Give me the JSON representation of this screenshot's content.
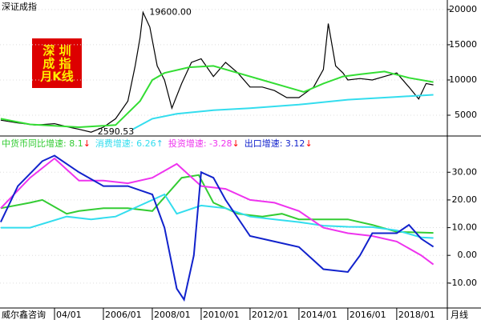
{
  "chart_data": [
    {
      "type": "line",
      "title": "深证成指",
      "xlim": [
        2001.77,
        2020.07
      ],
      "ylim": [
        2050,
        21350
      ],
      "yticks": [
        5000,
        10000,
        15000,
        20000
      ],
      "badge": [
        "深 圳",
        "成 指",
        "月K线"
      ],
      "annotations": [
        {
          "x": 2007.62,
          "value": 19600,
          "label": "19600.00"
        },
        {
          "x": 2005.5,
          "value": 2590.53,
          "label": "2590.53"
        }
      ],
      "series": [
        {
          "color": "#000000",
          "x": [
            2001.8,
            2002.5,
            2003.2,
            2004.0,
            2004.6,
            2005.0,
            2005.5,
            2006.0,
            2006.5,
            2007.0,
            2007.3,
            2007.5,
            2007.62,
            2007.9,
            2008.2,
            2008.5,
            2008.8,
            2009.2,
            2009.6,
            2010.0,
            2010.5,
            2011.0,
            2011.5,
            2012.0,
            2012.5,
            2013.0,
            2013.5,
            2014.0,
            2014.6,
            2015.0,
            2015.2,
            2015.5,
            2015.8,
            2016.0,
            2016.5,
            2017.0,
            2017.5,
            2018.0,
            2018.5,
            2018.9,
            2019.2,
            2019.5
          ],
          "values": [
            4300,
            3900,
            3600,
            3800,
            3300,
            3000,
            2590.53,
            3300,
            4500,
            7000,
            12000,
            16000,
            19600,
            17500,
            12000,
            10000,
            6000,
            9500,
            12500,
            13000,
            10500,
            12500,
            11000,
            9000,
            9000,
            8500,
            7500,
            7500,
            9000,
            11500,
            18000,
            12000,
            11000,
            10000,
            10200,
            10000,
            10500,
            11000,
            9000,
            7300,
            9500,
            9300
          ]
        },
        {
          "color": "#33dd33",
          "x": [
            2001.8,
            2003.0,
            2005.0,
            2006.5,
            2007.5,
            2008.0,
            2008.5,
            2009.5,
            2010.5,
            2011.5,
            2012.5,
            2013.5,
            2014.2,
            2015.0,
            2015.8,
            2016.5,
            2017.5,
            2018.5,
            2019.5
          ],
          "values": [
            4500,
            3700,
            3300,
            3600,
            7000,
            10000,
            11000,
            11800,
            12000,
            11000,
            10000,
            9000,
            8300,
            9500,
            10500,
            10800,
            11200,
            10300,
            9700
          ]
        },
        {
          "color": "#33ddee",
          "x": [
            2007.2,
            2008.0,
            2009.0,
            2010.5,
            2012.0,
            2014.0,
            2016.0,
            2018.0,
            2019.5
          ],
          "values": [
            3000,
            4500,
            5200,
            5700,
            6000,
            6500,
            7200,
            7600,
            7900
          ]
        }
      ]
    },
    {
      "type": "line",
      "xlim": [
        2001.77,
        2020.07
      ],
      "ylim": [
        -19,
        42.5
      ],
      "yticks": [
        {
          "value": -10,
          "label": "-10.00"
        },
        {
          "value": 0,
          "label": "0.00"
        },
        {
          "value": 10,
          "label": "10.00"
        },
        {
          "value": 20,
          "label": "20.00"
        },
        {
          "value": 30,
          "label": "30.00"
        }
      ],
      "xticks": [
        {
          "value": 2004,
          "label": "04/01"
        },
        {
          "value": 2006,
          "label": "2006/01"
        },
        {
          "value": 2008,
          "label": "2008/01"
        },
        {
          "value": 2010,
          "label": "2010/01"
        },
        {
          "value": 2012,
          "label": "2012/01"
        },
        {
          "value": 2014,
          "label": "2014/01"
        },
        {
          "value": 2016,
          "label": "2016/01"
        },
        {
          "value": 2018,
          "label": "2018/01"
        }
      ],
      "source": "威尔鑫咨询",
      "period": "月线",
      "series": [
        {
          "name": "中货币同比增速: 8.1",
          "trend": "↓",
          "trend_color": "#ff0000",
          "color": "#33cc33",
          "x": [
            2001.8,
            2003.0,
            2003.5,
            2004.5,
            2005.0,
            2006.0,
            2007.0,
            2008.0,
            2009.2,
            2009.9,
            2010.5,
            2011.5,
            2012.5,
            2013.3,
            2014.0,
            2015.0,
            2016.0,
            2017.0,
            2018.0,
            2019.5
          ],
          "values": [
            17,
            19,
            20,
            15,
            16,
            17,
            17,
            16,
            28,
            29,
            19,
            15,
            14,
            15,
            13,
            13,
            13,
            11,
            8.5,
            8.1
          ]
        },
        {
          "name": "消费增速: 6.26",
          "trend": "↑",
          "trend_color": "#33ccee",
          "color": "#33ddee",
          "x": [
            2001.8,
            2003.0,
            2004.5,
            2005.5,
            2006.5,
            2007.5,
            2008.5,
            2009.0,
            2010.0,
            2011.0,
            2012.0,
            2013.0,
            2014.0,
            2015.0,
            2016.0,
            2017.0,
            2018.0,
            2019.0,
            2019.5
          ],
          "values": [
            10,
            10,
            14,
            13,
            14,
            18,
            22,
            15,
            18,
            17,
            14,
            13,
            12,
            10.7,
            10.3,
            10.2,
            9,
            6.5,
            6.26
          ]
        },
        {
          "name": "投资增速: -3.28",
          "trend": "↓",
          "trend_color": "#ff0000",
          "color": "#ee33ee",
          "x": [
            2001.8,
            2003.0,
            2004.0,
            2005.0,
            2006.0,
            2007.0,
            2008.0,
            2009.0,
            2010.0,
            2011.0,
            2012.0,
            2013.0,
            2014.0,
            2015.0,
            2016.0,
            2017.0,
            2018.0,
            2019.0,
            2019.5
          ],
          "values": [
            17,
            28,
            35,
            27,
            27,
            26,
            28,
            33,
            25,
            24,
            20,
            19,
            16,
            10,
            8,
            7,
            5,
            0,
            -3.28
          ]
        },
        {
          "name": "出口增速: 3.12",
          "trend": "↓",
          "trend_color": "#ff0000",
          "color": "#1122cc",
          "x": [
            2001.8,
            2002.5,
            2003.5,
            2004.0,
            2005.0,
            2006.0,
            2007.0,
            2008.0,
            2008.5,
            2009.0,
            2009.3,
            2009.7,
            2010.0,
            2010.5,
            2011.0,
            2012.0,
            2013.0,
            2014.0,
            2015.0,
            2016.0,
            2016.5,
            2017.0,
            2018.0,
            2018.5,
            2019.0,
            2019.5
          ],
          "values": [
            12,
            25,
            34,
            36,
            30,
            25,
            25,
            22,
            10,
            -12,
            -16,
            0,
            30,
            28,
            20,
            7,
            5,
            3,
            -5,
            -6,
            0,
            8,
            8,
            11,
            6,
            3.12
          ]
        }
      ]
    }
  ]
}
